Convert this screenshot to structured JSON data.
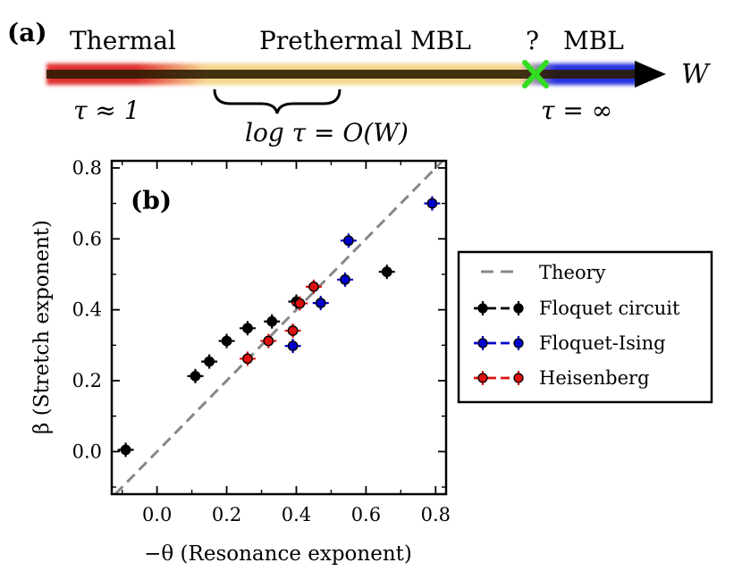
{
  "panel_a": {
    "label": "(a)",
    "regions": {
      "thermal": "Thermal",
      "prethermal": "Prethermal MBL",
      "question": "?",
      "mbl": "MBL"
    },
    "axis_var": "W",
    "tau_left": "τ ≈ 1",
    "tau_right": "τ = ∞",
    "brace_label": "log τ = O(W)",
    "colors": {
      "thermal": "#e03030",
      "prethermal": "#f6d890",
      "mbl": "#2830e0",
      "core": "#2a1a00",
      "marker": "#33dd22"
    }
  },
  "chart_data": {
    "type": "scatter",
    "panel_label": "(b)",
    "xlabel": "−θ (Resonance exponent)",
    "ylabel": "β (Stretch exponent)",
    "xlim": [
      -0.13,
      0.83
    ],
    "ylim": [
      -0.12,
      0.82
    ],
    "xticks": [
      0.0,
      0.2,
      0.4,
      0.6,
      0.8
    ],
    "xtick_labels": [
      "0.0",
      "0.2",
      "0.4",
      "0.6",
      "0.8"
    ],
    "yticks": [
      0.0,
      0.2,
      0.4,
      0.6,
      0.8
    ],
    "ytick_labels": [
      "0.0",
      "0.2",
      "0.4",
      "0.6",
      "0.8"
    ],
    "legend_position": "right",
    "theory": {
      "name": "Theory",
      "color": "#888888",
      "x": [
        -0.12,
        0.82
      ],
      "y": [
        -0.12,
        0.82
      ]
    },
    "series": [
      {
        "name": "Floquet circuit",
        "color": "#000000",
        "points": [
          {
            "x": -0.09,
            "y": 0.005
          },
          {
            "x": 0.11,
            "y": 0.213
          },
          {
            "x": 0.15,
            "y": 0.254
          },
          {
            "x": 0.2,
            "y": 0.312
          },
          {
            "x": 0.26,
            "y": 0.348
          },
          {
            "x": 0.33,
            "y": 0.367
          },
          {
            "x": 0.4,
            "y": 0.423
          },
          {
            "x": 0.66,
            "y": 0.507
          }
        ]
      },
      {
        "name": "Floquet-Ising",
        "color": "#0000cc",
        "points": [
          {
            "x": 0.39,
            "y": 0.298
          },
          {
            "x": 0.47,
            "y": 0.419
          },
          {
            "x": 0.54,
            "y": 0.485
          },
          {
            "x": 0.55,
            "y": 0.595
          },
          {
            "x": 0.79,
            "y": 0.7
          }
        ]
      },
      {
        "name": "Heisenberg",
        "color": "#dd1111",
        "points": [
          {
            "x": 0.26,
            "y": 0.262
          },
          {
            "x": 0.32,
            "y": 0.312
          },
          {
            "x": 0.39,
            "y": 0.341
          },
          {
            "x": 0.41,
            "y": 0.418
          },
          {
            "x": 0.45,
            "y": 0.465
          }
        ]
      }
    ]
  }
}
